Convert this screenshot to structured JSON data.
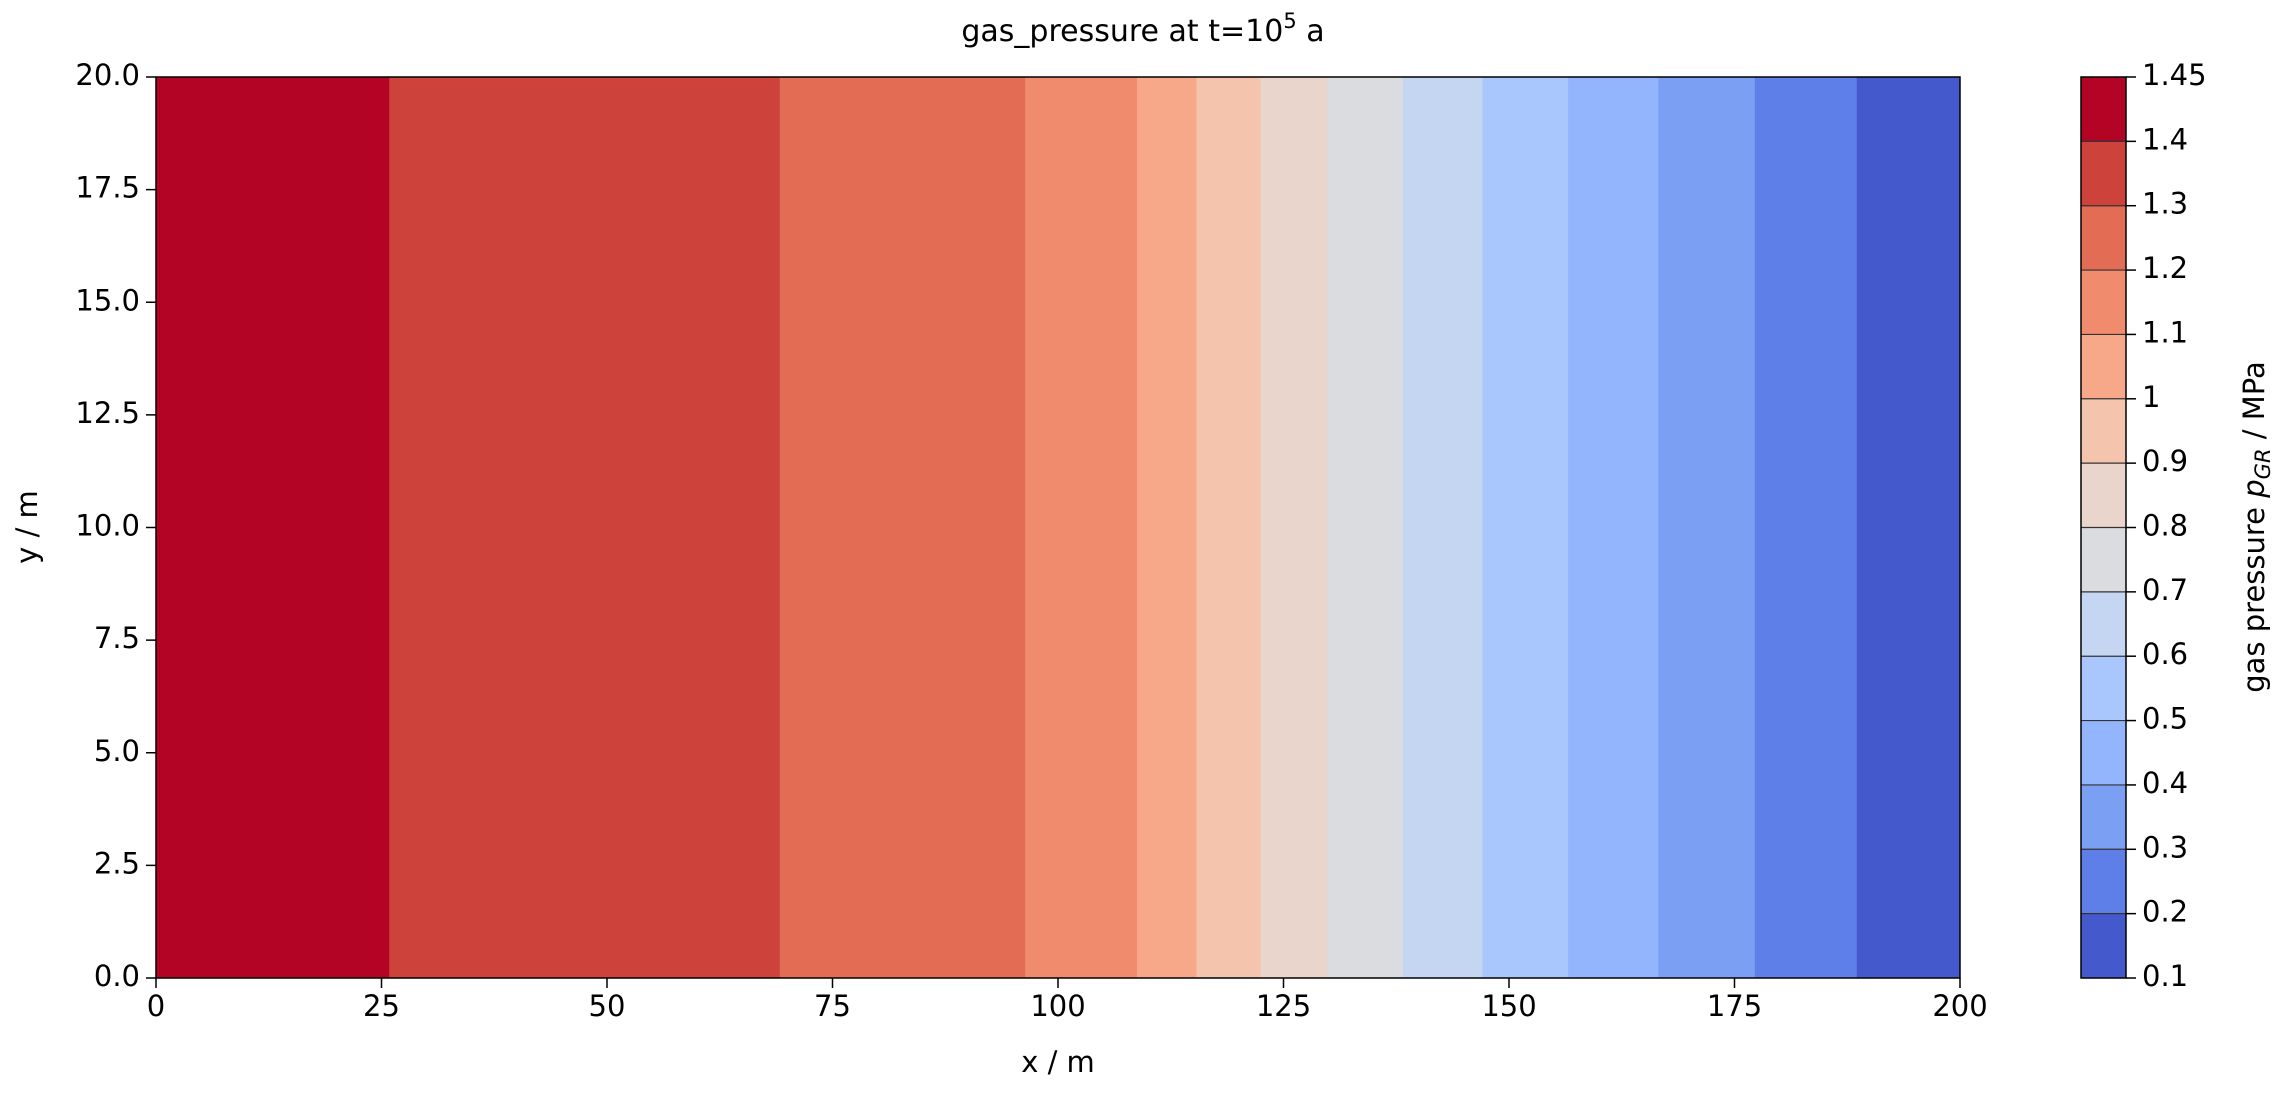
{
  "chart_data": {
    "type": "contourf",
    "title": {
      "text": "gas_pressure at t=10",
      "superscript": "5",
      "suffix": " a"
    },
    "xlabel": "x / m",
    "ylabel": "y / m",
    "colorbar_label": {
      "text": "gas pressure ",
      "symbol": "p",
      "subscript": "GR",
      "suffix": " / MPa"
    },
    "xlim": [
      0,
      200
    ],
    "ylim": [
      0,
      20
    ],
    "xticks": [
      0,
      25,
      50,
      75,
      100,
      125,
      150,
      175,
      200
    ],
    "yticks": [
      {
        "value": 0,
        "label": "0.0"
      },
      2.5,
      {
        "value": 5,
        "label": "5.0"
      },
      7.5,
      {
        "value": 10,
        "label": "10.0"
      },
      12.5,
      {
        "value": 15,
        "label": "15.0"
      },
      17.5,
      {
        "value": 20,
        "label": "20.0"
      }
    ],
    "levels": [
      0.1,
      0.2,
      0.3,
      0.4,
      0.5,
      0.6,
      0.7,
      0.8,
      0.9,
      1,
      1.1,
      1.2,
      1.3,
      1.4,
      1.45
    ],
    "colors": [
      "#445acc",
      "#5f7fe8",
      "#7b9ff2",
      "#93b5fe",
      "#aac7fd",
      "#c5d6f2",
      "#dadce0",
      "#e9d5cb",
      "#f5c4ac",
      "#f7a889",
      "#f08b6e",
      "#e36c55",
      "#cd423b",
      "#b40426"
    ],
    "band_edges_x": [
      200,
      188.5,
      177.2,
      166.5,
      156.5,
      147.0,
      138.2,
      129.8,
      122.4,
      115.3,
      108.7,
      96.3,
      69.1,
      25.8,
      0
    ]
  }
}
